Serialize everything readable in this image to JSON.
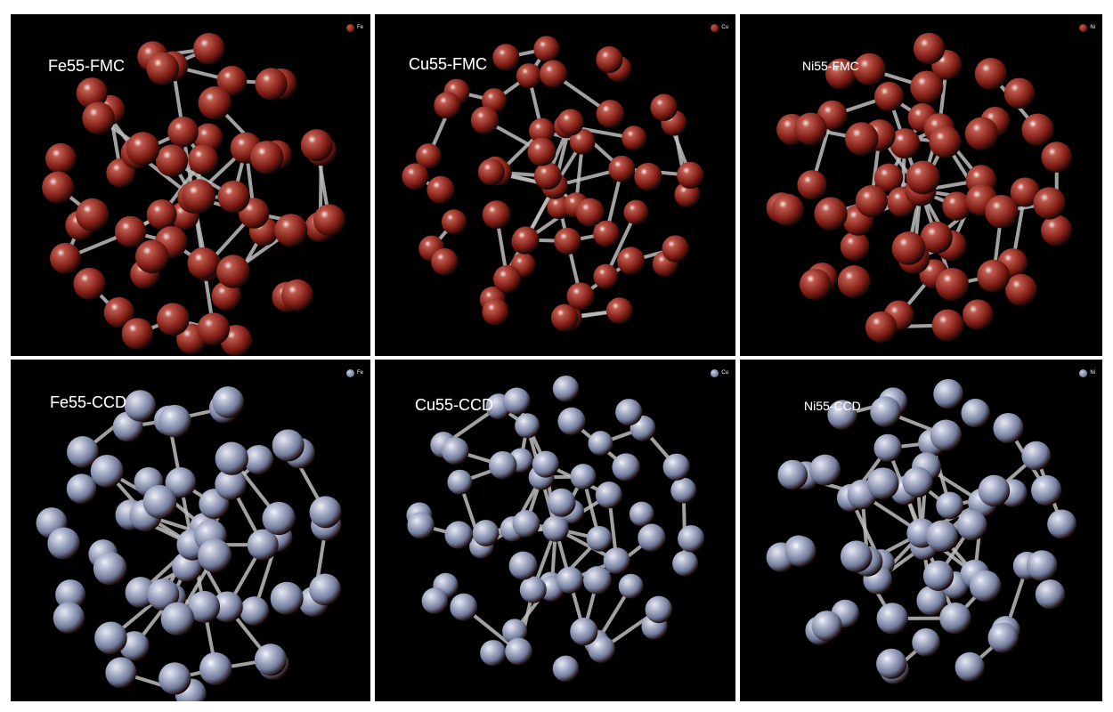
{
  "colors": {
    "background": "#000000",
    "bond": "#bdbdbd",
    "fmc_atom": "#7a1a12",
    "fmc_atom_highlight": "#c05a4e",
    "ccd_atom": "#707a9a",
    "ccd_atom_highlight": "#c8cde0"
  },
  "panels": [
    {
      "label": "Fe55-FMC",
      "legend": "Fe",
      "element": "Fe",
      "method": "FMC",
      "atom_color": "fmc",
      "icon": "fe55-fmc-cluster"
    },
    {
      "label": "Cu55-FMC",
      "legend": "Cu",
      "element": "Cu",
      "method": "FMC",
      "atom_color": "fmc",
      "icon": "cu55-fmc-cluster"
    },
    {
      "label": "Ni55-FMC",
      "legend": "Ni",
      "element": "Ni",
      "method": "FMC",
      "atom_color": "fmc",
      "icon": "ni55-fmc-cluster"
    },
    {
      "label": "Fe55-CCD",
      "legend": "Fe",
      "element": "Fe",
      "method": "CCD",
      "atom_color": "ccd",
      "icon": "fe55-ccd-cluster"
    },
    {
      "label": "Cu55-CCD",
      "legend": "Cu",
      "element": "Cu",
      "method": "CCD",
      "atom_color": "ccd",
      "icon": "cu55-ccd-cluster"
    },
    {
      "label": "Ni55-CCD",
      "legend": "Ni",
      "element": "Ni",
      "method": "CCD",
      "atom_color": "ccd",
      "icon": "ni55-ccd-cluster"
    }
  ]
}
